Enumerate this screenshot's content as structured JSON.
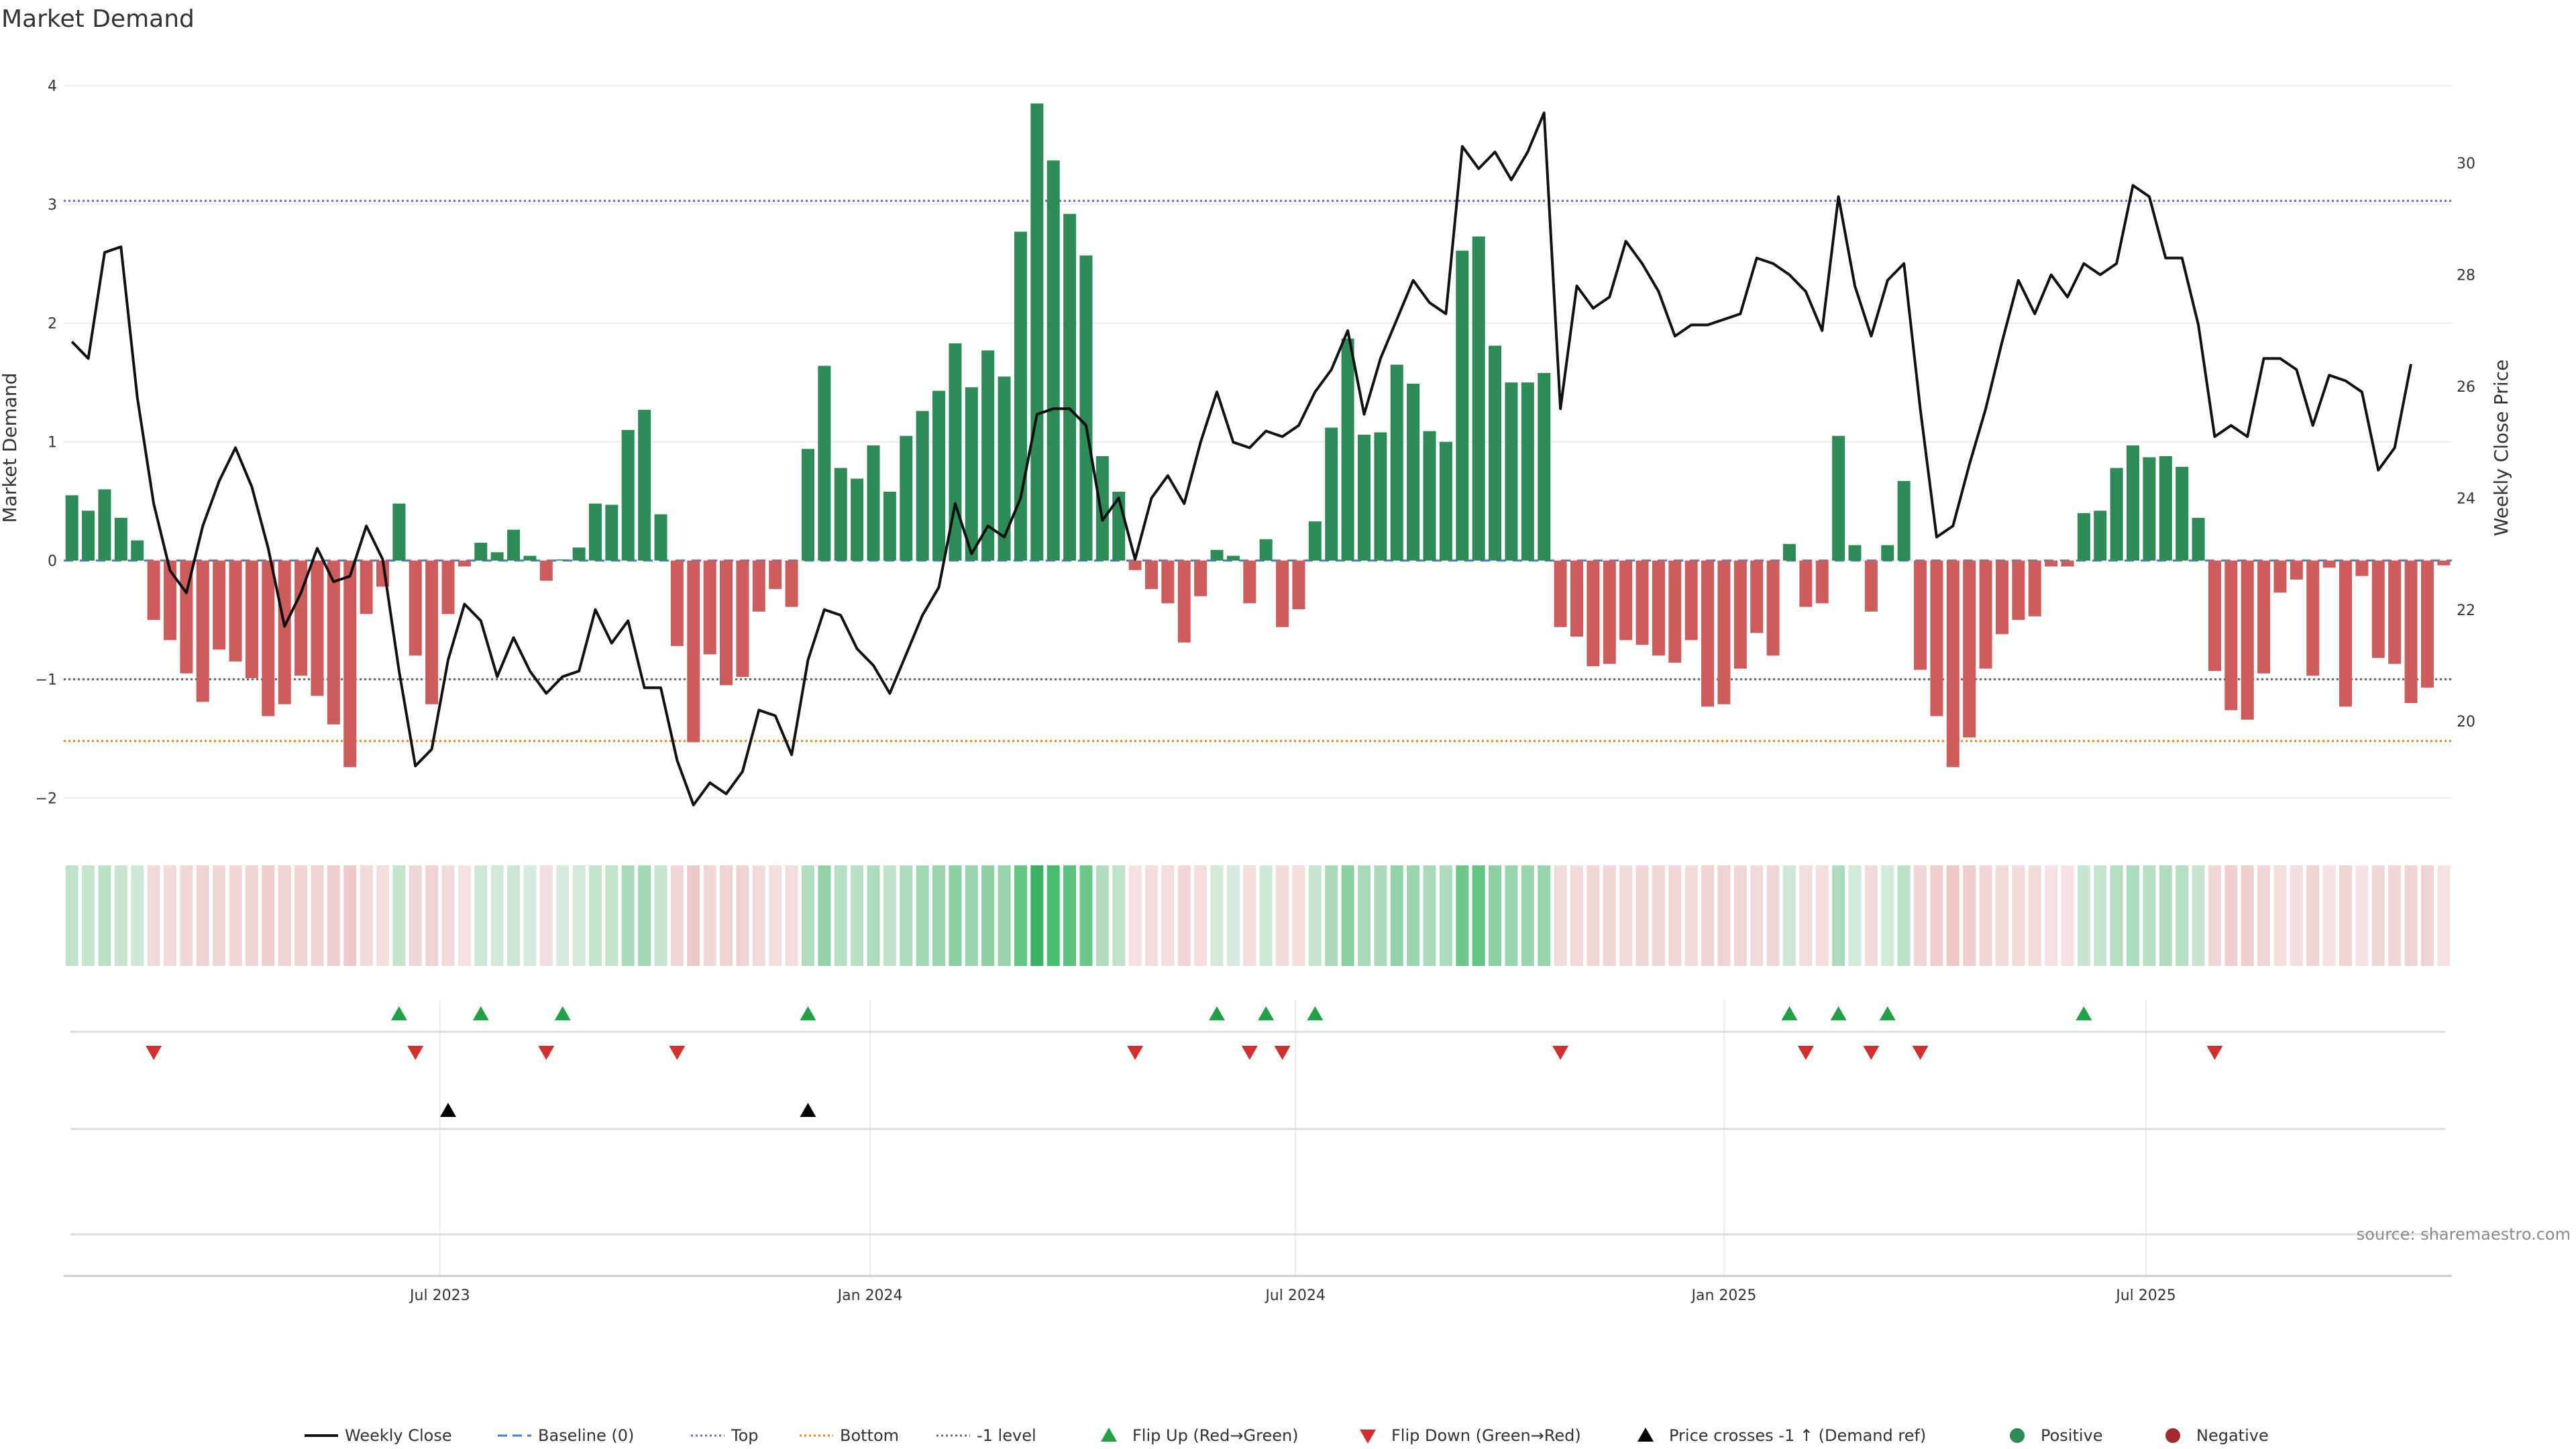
{
  "title": "Market Demand",
  "source": "source: sharemaestro.com",
  "colors": {
    "positive": "#2e8b57",
    "negative": "#cd5c5c",
    "price_line": "#111111",
    "top_line": "#6b6bbf",
    "bottom_line": "#e08a1e",
    "minus1_line": "#666666",
    "flip_up": "#22a045",
    "flip_down": "#d32f2f",
    "cross": "#000000",
    "grid": "#ececec"
  },
  "legend": [
    {
      "key": "weekly_close",
      "label": "Weekly Close",
      "symbol": "line",
      "color": "#111111"
    },
    {
      "key": "baseline",
      "label": "Baseline (0)",
      "symbol": "dash",
      "color": "#4a7fc1"
    },
    {
      "key": "top",
      "label": "Top",
      "symbol": "dot",
      "color": "#6b6bbf"
    },
    {
      "key": "bottom",
      "label": "Bottom",
      "symbol": "dot",
      "color": "#e08a1e"
    },
    {
      "key": "minus1",
      "label": "-1 level",
      "symbol": "dot",
      "color": "#666666"
    },
    {
      "key": "flip_up",
      "label": "Flip Up (Red→Green)",
      "symbol": "tri-up",
      "color": "#22a045"
    },
    {
      "key": "flip_down",
      "label": "Flip Down (Green→Red)",
      "symbol": "tri-down",
      "color": "#d32f2f"
    },
    {
      "key": "cross",
      "label": "Price crosses -1 ↑ (Demand ref)",
      "symbol": "tri-up",
      "color": "#000000"
    },
    {
      "key": "positive",
      "label": "Positive",
      "symbol": "circle",
      "color": "#2e8b57"
    },
    {
      "key": "negative",
      "label": "Negative",
      "symbol": "circle",
      "color": "#a52a2a"
    }
  ],
  "chart_data": {
    "type": "bar",
    "title": "Market Demand",
    "ylabel": "Market Demand",
    "y2label": "Weekly Close Price",
    "ylim": [
      -2.2,
      4.1
    ],
    "y2lim": [
      18.2,
      31.6
    ],
    "yticks": [
      -2,
      -1,
      0,
      1,
      2,
      3,
      4
    ],
    "ytick_labels": [
      "−2",
      "−1",
      "0",
      "1",
      "2",
      "3",
      "4"
    ],
    "y2ticks": [
      20,
      22,
      24,
      26,
      28,
      30
    ],
    "y2tick_labels": [
      "20",
      "22",
      "24",
      "26",
      "28",
      "30"
    ],
    "x_tick_labels": [
      {
        "label": "Jul 2023",
        "index": 22.5
      },
      {
        "label": "Jan 2024",
        "index": 48.8
      },
      {
        "label": "Jul 2024",
        "index": 74.8
      },
      {
        "label": "Jan 2025",
        "index": 101.0
      },
      {
        "label": "Jul 2025",
        "index": 126.8
      }
    ],
    "reference_lines": {
      "top": 3.03,
      "bottom": -1.52,
      "minus1": -1.0,
      "baseline": 0
    },
    "demand": [
      0.55,
      0.42,
      0.6,
      0.36,
      0.17,
      -0.5,
      -0.67,
      -0.95,
      -1.19,
      -0.75,
      -0.85,
      -0.99,
      -1.31,
      -1.21,
      -0.97,
      -1.14,
      -1.38,
      -1.74,
      -0.45,
      -0.22,
      0.48,
      -0.8,
      -1.21,
      -0.45,
      -0.05,
      0.15,
      0.07,
      0.26,
      0.04,
      -0.17,
      0.01,
      0.11,
      0.48,
      0.47,
      1.1,
      1.27,
      0.39,
      -0.72,
      -1.53,
      -0.79,
      -1.05,
      -0.98,
      -0.43,
      -0.24,
      -0.39,
      0.94,
      1.64,
      0.78,
      0.69,
      0.97,
      0.58,
      1.05,
      1.26,
      1.43,
      1.83,
      1.46,
      1.77,
      1.55,
      2.77,
      3.85,
      3.37,
      2.92,
      2.57,
      0.88,
      0.58,
      -0.08,
      -0.24,
      -0.36,
      -0.69,
      -0.3,
      0.09,
      0.04,
      -0.36,
      0.18,
      -0.56,
      -0.41,
      0.33,
      1.12,
      1.87,
      1.06,
      1.08,
      1.65,
      1.49,
      1.09,
      1.0,
      2.61,
      2.73,
      1.81,
      1.5,
      1.5,
      1.58,
      -0.56,
      -0.64,
      -0.89,
      -0.87,
      -0.67,
      -0.71,
      -0.8,
      -0.86,
      -0.67,
      -1.23,
      -1.21,
      -0.91,
      -0.61,
      -0.8,
      0.14,
      -0.39,
      -0.36,
      1.05,
      0.13,
      -0.43,
      0.13,
      0.67,
      -0.92,
      -1.31,
      -1.74,
      -1.49,
      -0.91,
      -0.62,
      -0.5,
      -0.47,
      -0.05,
      -0.05,
      0.4,
      0.42,
      0.78,
      0.97,
      0.87,
      0.88,
      0.79,
      0.36,
      -0.93,
      -1.26,
      -1.34,
      -0.95,
      -0.27,
      -0.16,
      -0.97,
      -0.06,
      -1.23,
      -0.13,
      -0.82,
      -0.87,
      -1.2,
      -1.07,
      -0.04
    ],
    "weekly_close": [
      26.8,
      26.5,
      28.4,
      28.5,
      25.8,
      23.9,
      22.7,
      22.3,
      23.5,
      24.3,
      24.9,
      24.2,
      23.1,
      21.7,
      22.3,
      23.1,
      22.5,
      22.6,
      23.5,
      22.9,
      20.9,
      19.2,
      19.5,
      21.1,
      22.1,
      21.8,
      20.8,
      21.5,
      20.9,
      20.5,
      20.8,
      20.9,
      22.0,
      21.4,
      21.8,
      20.6,
      20.6,
      19.3,
      18.5,
      18.9,
      18.7,
      19.1,
      20.2,
      20.1,
      19.4,
      21.1,
      22.0,
      21.9,
      21.3,
      21.0,
      20.5,
      21.2,
      21.9,
      22.4,
      23.9,
      23.0,
      23.5,
      23.3,
      24.0,
      25.5,
      25.6,
      25.6,
      25.3,
      23.6,
      24.0,
      22.9,
      24.0,
      24.4,
      23.9,
      25.0,
      25.9,
      25.0,
      24.9,
      25.2,
      25.1,
      25.3,
      25.9,
      26.3,
      27.0,
      25.5,
      26.5,
      27.2,
      27.9,
      27.5,
      27.3,
      30.3,
      29.9,
      30.2,
      29.7,
      30.2,
      30.9,
      25.6,
      27.8,
      27.4,
      27.6,
      28.6,
      28.2,
      27.7,
      26.9,
      27.1,
      27.1,
      27.2,
      27.3,
      28.3,
      28.2,
      28.0,
      27.7,
      27.0,
      29.4,
      27.8,
      26.9,
      27.9,
      28.2,
      25.6,
      23.3,
      23.5,
      24.6,
      25.6,
      26.8,
      27.9,
      27.3,
      28.0,
      27.6,
      28.2,
      28.0,
      28.2,
      29.6,
      29.4,
      28.3,
      28.3,
      27.1,
      25.1,
      25.3,
      25.1,
      26.5,
      26.5,
      26.3,
      25.3,
      26.2,
      26.1,
      25.9,
      24.5,
      24.9,
      26.4
    ],
    "flip_up_indices": [
      20,
      25,
      30,
      45,
      70,
      73,
      76,
      105,
      108,
      111,
      123
    ],
    "flip_down_indices": [
      5,
      21,
      29,
      37,
      65,
      72,
      74,
      91,
      106,
      110,
      113,
      131
    ],
    "price_cross_indices": [
      23,
      45
    ]
  }
}
